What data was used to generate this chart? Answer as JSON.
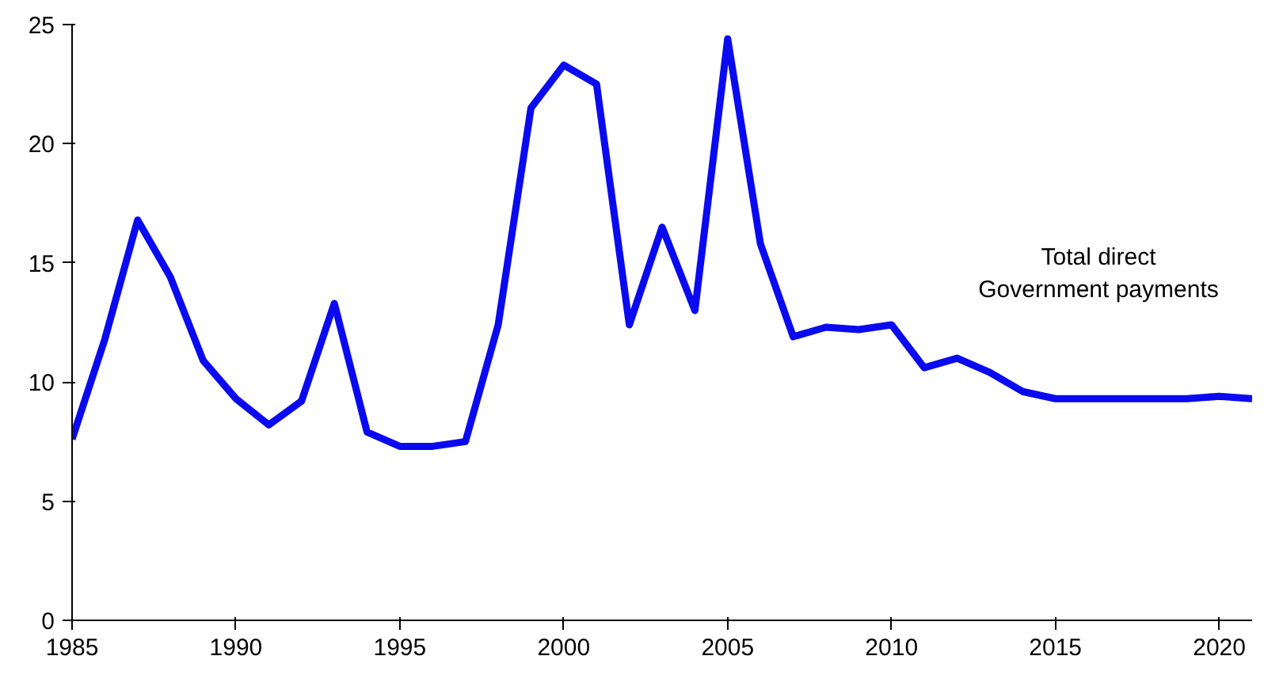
{
  "chart_data": {
    "type": "line",
    "x": [
      1985,
      1986,
      1987,
      1988,
      1989,
      1990,
      1991,
      1992,
      1993,
      1994,
      1995,
      1996,
      1997,
      1998,
      1999,
      2000,
      2001,
      2002,
      2003,
      2004,
      2005,
      2006,
      2007,
      2008,
      2009,
      2010,
      2011,
      2012,
      2013,
      2014,
      2015,
      2016,
      2017,
      2018,
      2019,
      2020,
      2021
    ],
    "series": [
      {
        "name": "Total direct\nGovernment payments",
        "color": "#0a0af0",
        "values": [
          7.6,
          11.8,
          16.8,
          14.4,
          10.9,
          9.3,
          8.2,
          9.2,
          13.3,
          7.9,
          7.3,
          7.3,
          7.5,
          12.4,
          21.5,
          23.3,
          22.5,
          12.4,
          16.5,
          13.0,
          24.4,
          15.8,
          11.9,
          12.3,
          12.2,
          12.4,
          10.6,
          11.0,
          10.4,
          9.6,
          9.3,
          9.3,
          9.3,
          9.3,
          9.3,
          9.4,
          9.3
        ]
      }
    ],
    "xlim": [
      1985,
      2021
    ],
    "xticks": [
      1985,
      1990,
      1995,
      2000,
      2005,
      2010,
      2015,
      2020
    ],
    "ylim": [
      0,
      25
    ],
    "yticks": [
      0,
      5,
      10,
      15,
      20,
      25
    ],
    "grid": false,
    "marker": "none",
    "line_style": "solid"
  }
}
